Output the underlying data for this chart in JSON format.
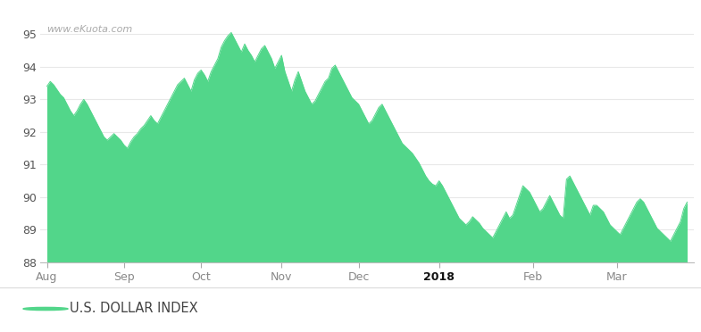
{
  "watermark": "www.eKuota.com",
  "legend_label": "U.S. DOLLAR INDEX",
  "legend_color": "#52d68a",
  "fill_color": "#52d68a",
  "line_color": "#52d68a",
  "background_color": "#ffffff",
  "plot_bg_color": "#ffffff",
  "header_bg_color": "#d0d0d0",
  "ylim": [
    88,
    95.5
  ],
  "yticks": [
    88,
    89,
    90,
    91,
    92,
    93,
    94,
    95
  ],
  "x_labels": [
    "Aug",
    "Sep",
    "Oct",
    "Nov",
    "Dec",
    "2018",
    "Feb",
    "Mar"
  ],
  "data": [
    93.4,
    93.55,
    93.45,
    93.3,
    93.15,
    93.05,
    92.85,
    92.65,
    92.5,
    92.65,
    92.85,
    93.0,
    92.85,
    92.65,
    92.45,
    92.25,
    92.05,
    91.85,
    91.75,
    91.85,
    91.95,
    91.85,
    91.75,
    91.6,
    91.5,
    91.7,
    91.85,
    91.95,
    92.1,
    92.2,
    92.35,
    92.5,
    92.35,
    92.25,
    92.45,
    92.65,
    92.85,
    93.05,
    93.25,
    93.45,
    93.55,
    93.65,
    93.45,
    93.25,
    93.6,
    93.8,
    93.9,
    93.75,
    93.55,
    93.85,
    94.05,
    94.25,
    94.6,
    94.8,
    94.95,
    95.05,
    94.85,
    94.65,
    94.45,
    94.7,
    94.5,
    94.35,
    94.15,
    94.35,
    94.55,
    94.65,
    94.45,
    94.25,
    93.95,
    94.15,
    94.35,
    93.85,
    93.55,
    93.25,
    93.6,
    93.85,
    93.55,
    93.25,
    93.05,
    92.85,
    92.95,
    93.15,
    93.35,
    93.55,
    93.65,
    93.95,
    94.05,
    93.85,
    93.65,
    93.45,
    93.25,
    93.05,
    92.95,
    92.85,
    92.65,
    92.45,
    92.25,
    92.35,
    92.55,
    92.75,
    92.85,
    92.65,
    92.45,
    92.25,
    92.05,
    91.85,
    91.65,
    91.55,
    91.45,
    91.35,
    91.2,
    91.05,
    90.85,
    90.65,
    90.5,
    90.4,
    90.35,
    90.5,
    90.35,
    90.15,
    89.95,
    89.75,
    89.55,
    89.35,
    89.25,
    89.15,
    89.25,
    89.4,
    89.3,
    89.2,
    89.05,
    88.95,
    88.85,
    88.75,
    88.95,
    89.15,
    89.35,
    89.55,
    89.35,
    89.45,
    89.75,
    90.05,
    90.35,
    90.25,
    90.15,
    89.95,
    89.75,
    89.55,
    89.65,
    89.85,
    90.05,
    89.85,
    89.65,
    89.45,
    89.35,
    90.55,
    90.65,
    90.45,
    90.25,
    90.05,
    89.85,
    89.65,
    89.45,
    89.75,
    89.75,
    89.65,
    89.55,
    89.35,
    89.15,
    89.05,
    88.95,
    88.85,
    89.05,
    89.25,
    89.45,
    89.65,
    89.85,
    89.95,
    89.85,
    89.65,
    89.45,
    89.25,
    89.05,
    88.95,
    88.85,
    88.75,
    88.65,
    88.85,
    89.05,
    89.25,
    89.65,
    89.85
  ]
}
